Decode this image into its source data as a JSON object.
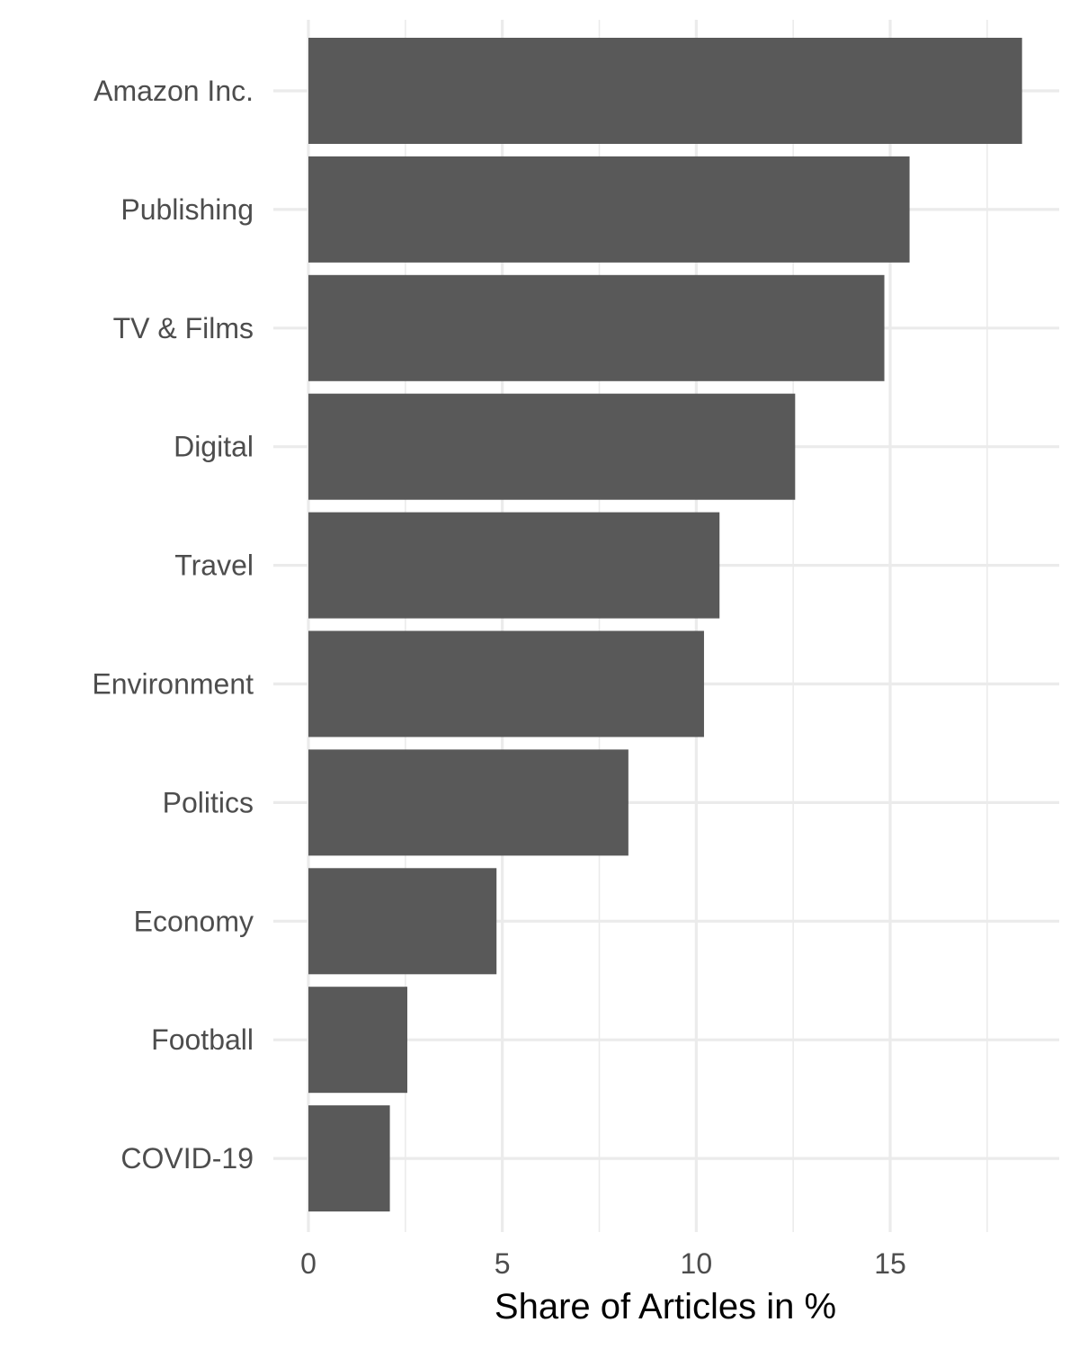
{
  "chart_data": {
    "type": "bar",
    "orientation": "horizontal",
    "categories": [
      "Amazon Inc.",
      "Publishing",
      "TV & Films",
      "Digital",
      "Travel",
      "Environment",
      "Politics",
      "Economy",
      "Football",
      "COVID-19"
    ],
    "values": [
      18.4,
      15.5,
      14.85,
      12.55,
      10.6,
      10.2,
      8.25,
      4.85,
      2.55,
      2.1
    ],
    "title": "",
    "xlabel": "Share of Articles in %",
    "ylabel": "",
    "xlim": [
      0,
      19.3
    ],
    "x_ticks": [
      0,
      5,
      10,
      15
    ],
    "x_tick_labels": [
      "0",
      "5",
      "10",
      "15"
    ],
    "grid": true,
    "legend": "none",
    "colors": {
      "bar": "#595959",
      "grid": "#ebebeb",
      "tick_text": "#4d4d4d",
      "background": "#ffffff"
    }
  }
}
